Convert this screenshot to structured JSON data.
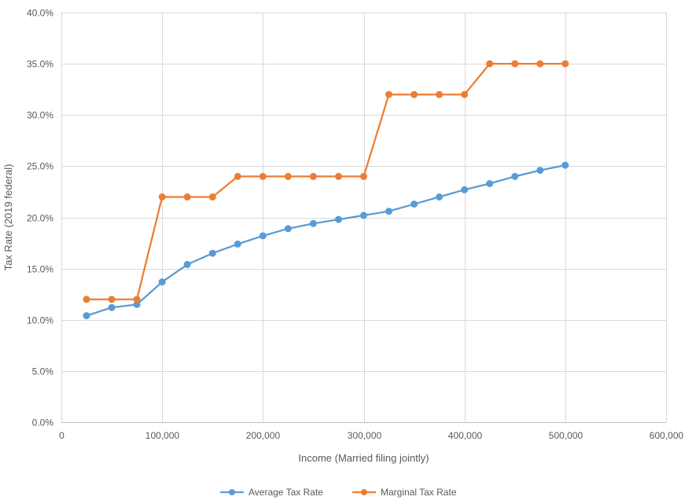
{
  "chart_data": {
    "type": "line",
    "title": "",
    "xlabel": "Income (Married filing jointly)",
    "ylabel": "Tax Rate (2019 federal)",
    "xlim": [
      0,
      600000
    ],
    "ylim": [
      0,
      0.4
    ],
    "x_ticks": [
      0,
      100000,
      200000,
      300000,
      400000,
      500000,
      600000
    ],
    "x_tick_labels": [
      "0",
      "100,000",
      "200,000",
      "300,000",
      "400,000",
      "500,000",
      "600,000"
    ],
    "y_ticks": [
      0,
      0.05,
      0.1,
      0.15,
      0.2,
      0.25,
      0.3,
      0.35,
      0.4
    ],
    "y_tick_labels": [
      "0.0%",
      "5.0%",
      "10.0%",
      "15.0%",
      "20.0%",
      "25.0%",
      "30.0%",
      "35.0%",
      "40.0%"
    ],
    "grid": true,
    "legend_position": "bottom",
    "x": [
      25000,
      50000,
      75000,
      100000,
      125000,
      150000,
      175000,
      200000,
      225000,
      250000,
      275000,
      300000,
      325000,
      350000,
      375000,
      400000,
      425000,
      450000,
      475000,
      500000
    ],
    "series": [
      {
        "name": "Average Tax Rate",
        "color": "#5b9bd5",
        "values": [
          0.104,
          0.112,
          0.115,
          0.137,
          0.154,
          0.165,
          0.174,
          0.182,
          0.189,
          0.194,
          0.198,
          0.202,
          0.206,
          0.213,
          0.22,
          0.227,
          0.233,
          0.24,
          0.246,
          0.251
        ]
      },
      {
        "name": "Marginal Tax Rate",
        "color": "#ed7d31",
        "values": [
          0.12,
          0.12,
          0.12,
          0.22,
          0.22,
          0.22,
          0.24,
          0.24,
          0.24,
          0.24,
          0.24,
          0.24,
          0.32,
          0.32,
          0.32,
          0.32,
          0.35,
          0.35,
          0.35,
          0.35
        ]
      }
    ]
  }
}
